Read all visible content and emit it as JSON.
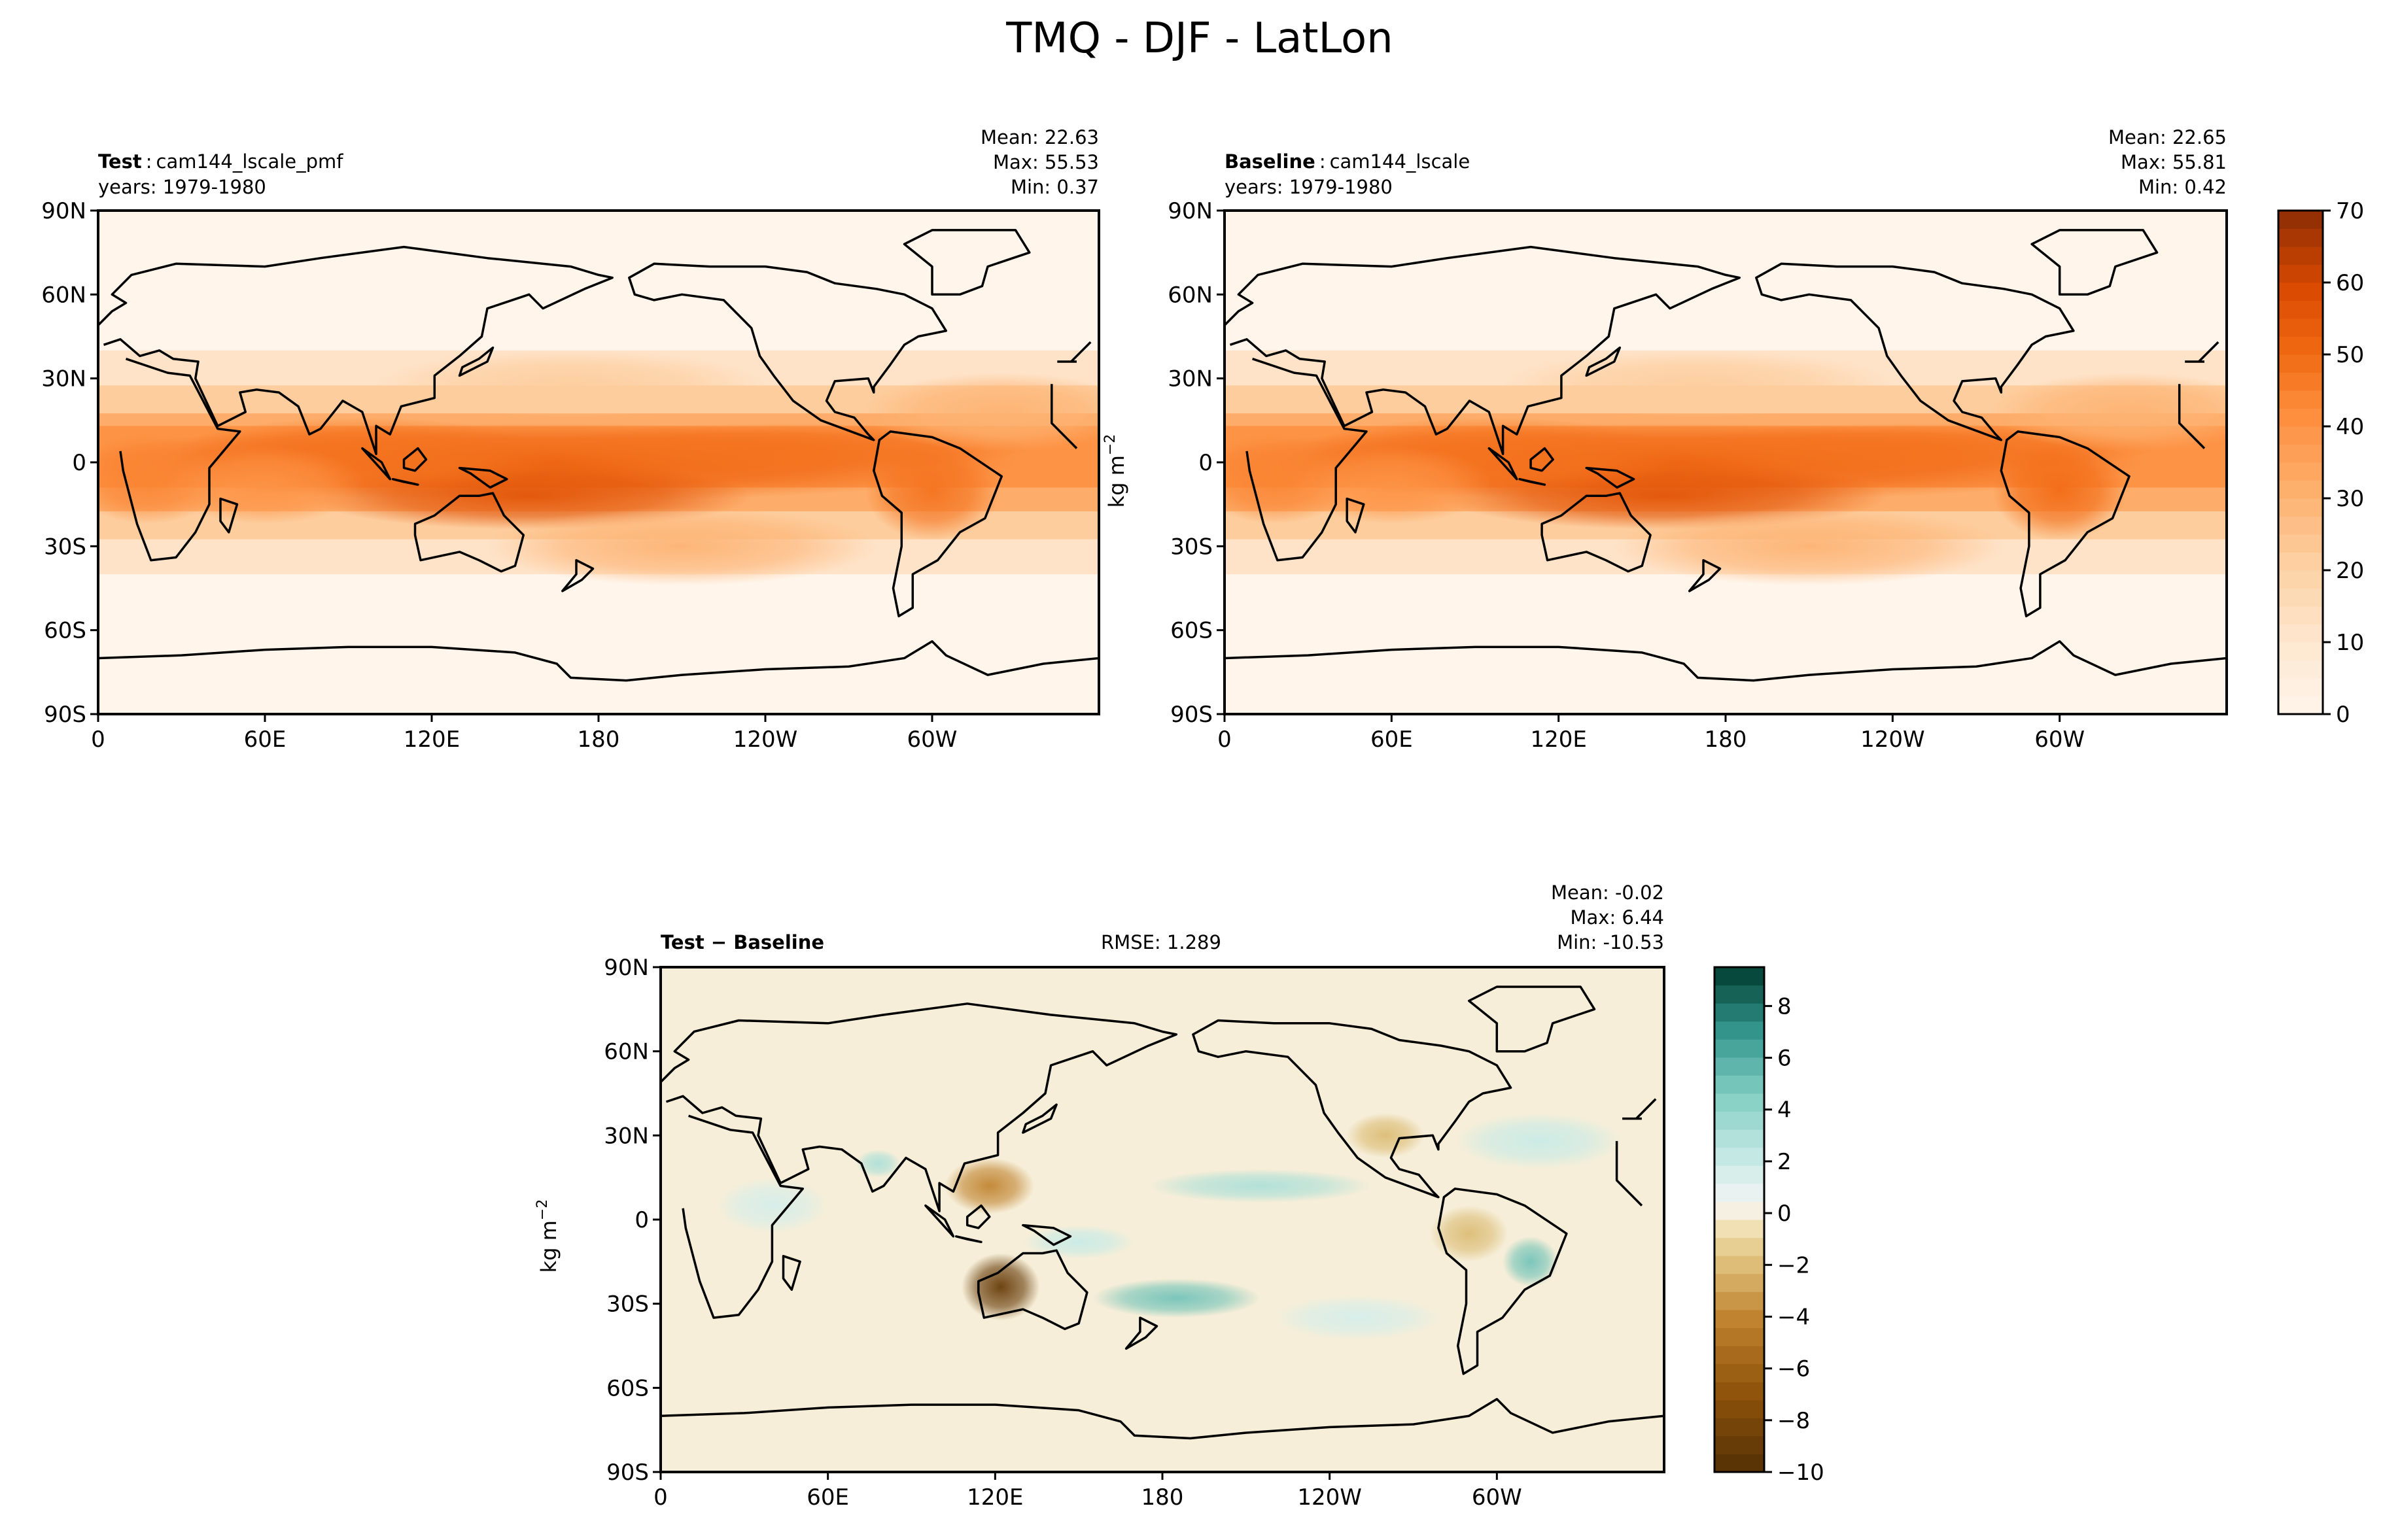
{
  "figure": {
    "title": "TMQ - DJF - LatLon"
  },
  "chart_data": [
    {
      "type": "heatmap",
      "panel": "test",
      "label_bold": "Test",
      "label_name": "cam144_lscale_pmf",
      "years": "years: 1979-1980",
      "stats": {
        "mean": "Mean: 22.63",
        "max": "Max: 55.53",
        "min": "Min:  0.37"
      },
      "x_ticks": [
        "0",
        "60E",
        "120E",
        "180",
        "120W",
        "60W"
      ],
      "y_ticks": [
        "90N",
        "60N",
        "30N",
        "0",
        "30S",
        "60S",
        "90S"
      ],
      "xlim": [
        0,
        360
      ],
      "ylim": [
        -90,
        90
      ],
      "colormap": "Oranges",
      "clim": [
        0,
        70
      ],
      "features": [
        {
          "lat": 0,
          "lon": 160,
          "w": 170,
          "h": 14,
          "v": 52
        },
        {
          "lat": -12,
          "lon": 155,
          "w": 80,
          "h": 12,
          "v": 56
        },
        {
          "lat": 2,
          "lon": 95,
          "w": 70,
          "h": 14,
          "v": 48
        },
        {
          "lat": 5,
          "lon": 245,
          "w": 90,
          "h": 9,
          "v": 48
        },
        {
          "lat": -10,
          "lon": 300,
          "w": 24,
          "h": 18,
          "v": 48
        },
        {
          "lat": -6,
          "lon": 18,
          "w": 28,
          "h": 16,
          "v": 44
        },
        {
          "lat": -8,
          "lon": 60,
          "w": 36,
          "h": 14,
          "v": 40
        },
        {
          "lat": 18,
          "lon": 325,
          "w": 50,
          "h": 14,
          "v": 30
        },
        {
          "lat": -30,
          "lon": 210,
          "w": 70,
          "h": 14,
          "v": 30
        },
        {
          "lat": 28,
          "lon": 170,
          "w": 70,
          "h": 12,
          "v": 22
        }
      ]
    },
    {
      "type": "heatmap",
      "panel": "baseline",
      "label_bold": "Baseline",
      "label_name": "cam144_lscale",
      "years": "years: 1979-1980",
      "stats": {
        "mean": "Mean: 22.65",
        "max": "Max: 55.81",
        "min": "Min:  0.42"
      },
      "x_ticks": [
        "0",
        "60E",
        "120E",
        "180",
        "120W",
        "60W"
      ],
      "y_ticks": [
        "90N",
        "60N",
        "30N",
        "0",
        "30S",
        "60S",
        "90S"
      ],
      "xlim": [
        0,
        360
      ],
      "ylim": [
        -90,
        90
      ],
      "colormap": "Oranges",
      "clim": [
        0,
        70
      ],
      "colorbar_label": "kg m",
      "colorbar_label_exp": "−2",
      "colorbar_ticks": [
        "0",
        "10",
        "20",
        "30",
        "40",
        "50",
        "60",
        "70"
      ],
      "features": [
        {
          "lat": 0,
          "lon": 160,
          "w": 170,
          "h": 14,
          "v": 52
        },
        {
          "lat": -12,
          "lon": 158,
          "w": 80,
          "h": 12,
          "v": 56
        },
        {
          "lat": 2,
          "lon": 95,
          "w": 70,
          "h": 14,
          "v": 48
        },
        {
          "lat": 5,
          "lon": 245,
          "w": 90,
          "h": 9,
          "v": 48
        },
        {
          "lat": -10,
          "lon": 300,
          "w": 24,
          "h": 18,
          "v": 50
        },
        {
          "lat": -6,
          "lon": 18,
          "w": 28,
          "h": 16,
          "v": 44
        },
        {
          "lat": -8,
          "lon": 60,
          "w": 36,
          "h": 14,
          "v": 40
        },
        {
          "lat": 18,
          "lon": 325,
          "w": 50,
          "h": 14,
          "v": 30
        },
        {
          "lat": -30,
          "lon": 210,
          "w": 70,
          "h": 14,
          "v": 30
        },
        {
          "lat": 28,
          "lon": 170,
          "w": 70,
          "h": 12,
          "v": 22
        }
      ]
    },
    {
      "type": "heatmap",
      "panel": "difference",
      "label_bold": "Test − Baseline",
      "rmse": "RMSE: 1.289",
      "stats": {
        "mean": "Mean: -0.02",
        "max": "Max:  6.44",
        "min": "Min: -10.53"
      },
      "x_ticks": [
        "0",
        "60E",
        "120E",
        "180",
        "120W",
        "60W"
      ],
      "y_ticks": [
        "90N",
        "60N",
        "30N",
        "0",
        "30S",
        "60S",
        "90S"
      ],
      "xlim": [
        0,
        360
      ],
      "ylim": [
        -90,
        90
      ],
      "colormap": "BrBG",
      "clim": [
        -10,
        9.5
      ],
      "colorbar_label": "kg m",
      "colorbar_label_exp": "−2",
      "colorbar_ticks": [
        "8",
        "6",
        "4",
        "2",
        "0",
        "−2",
        "−4",
        "−6",
        "−8",
        "−10"
      ],
      "features": [
        {
          "lat": -24,
          "lon": 122,
          "w": 14,
          "h": 12,
          "v": -9
        },
        {
          "lat": 12,
          "lon": 118,
          "w": 16,
          "h": 10,
          "v": -4
        },
        {
          "lat": 20,
          "lon": 78,
          "w": 8,
          "h": 5,
          "v": 3
        },
        {
          "lat": -28,
          "lon": 185,
          "w": 30,
          "h": 7,
          "v": 5
        },
        {
          "lat": -15,
          "lon": 312,
          "w": 10,
          "h": 9,
          "v": 5
        },
        {
          "lat": 12,
          "lon": 215,
          "w": 40,
          "h": 6,
          "v": 3
        },
        {
          "lat": 28,
          "lon": 315,
          "w": 30,
          "h": 10,
          "v": 2
        },
        {
          "lat": -8,
          "lon": 150,
          "w": 20,
          "h": 6,
          "v": 2
        },
        {
          "lat": 30,
          "lon": 260,
          "w": 14,
          "h": 8,
          "v": -2
        },
        {
          "lat": 5,
          "lon": 40,
          "w": 20,
          "h": 10,
          "v": 1.5
        },
        {
          "lat": -5,
          "lon": 290,
          "w": 14,
          "h": 10,
          "v": -2
        },
        {
          "lat": -35,
          "lon": 250,
          "w": 30,
          "h": 8,
          "v": 1.5
        }
      ]
    }
  ]
}
